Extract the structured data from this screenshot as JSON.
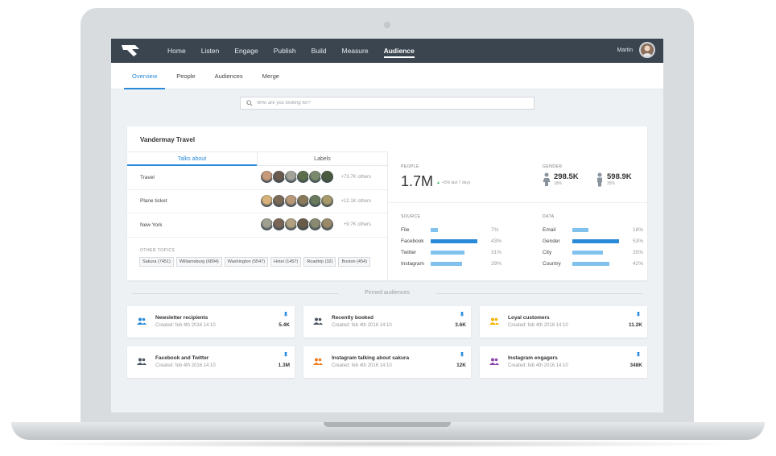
{
  "colors": {
    "accent": "#2a8ad8",
    "nav_bg": "#3a4550",
    "bar_light": "#80c1ee",
    "growth_green": "#3ab56c",
    "group_blue": "#2a8ad8",
    "group_dark": "#4a5560",
    "group_yellow": "#f5b400",
    "group_orange": "#f07d1e",
    "group_purple": "#8e44ad"
  },
  "topnav": {
    "logo": "brand-logo",
    "items": [
      "Home",
      "Listen",
      "Engage",
      "Publish",
      "Build",
      "Measure",
      "Audience"
    ],
    "active": "Audience",
    "user_name": "Martin"
  },
  "subnav": {
    "items": [
      "Overview",
      "People",
      "Audiences",
      "Merge"
    ],
    "active": "Overview"
  },
  "search": {
    "placeholder": "Who are you looking for?"
  },
  "card": {
    "title": "Vandermay Travel",
    "tabs": [
      "Talks about",
      "Labels"
    ],
    "topics": [
      {
        "name": "Travel",
        "others": "+73.7K others"
      },
      {
        "name": "Plane ticket",
        "others": "+12.1K others"
      },
      {
        "name": "New York",
        "others": "+9.7K others"
      }
    ],
    "other_topics_label": "OTHER TOPICS",
    "other_topics": [
      "Sakura (7451)",
      "Williamsburg (6894)",
      "Washington (5547)",
      "Hotel (1457)",
      "Roadtrip (32)",
      "Boston (454)"
    ]
  },
  "stats": {
    "people_label": "PEOPLE",
    "people_value": "1.7M",
    "people_growth": "+5% last 7 days",
    "gender_label": "GENDER",
    "female": {
      "value": "298.5K",
      "pct": "18%"
    },
    "male": {
      "value": "598.9K",
      "pct": "35%"
    },
    "source_label": "SOURCE",
    "source": [
      {
        "name": "File",
        "pct": "7%",
        "value": 7
      },
      {
        "name": "Facebook",
        "pct": "43%",
        "value": 43
      },
      {
        "name": "Twitter",
        "pct": "31%",
        "value": 31
      },
      {
        "name": "Instagram",
        "pct": "29%",
        "value": 29
      }
    ],
    "data_label": "DATA",
    "data": [
      {
        "name": "Email",
        "pct": "18%",
        "value": 18
      },
      {
        "name": "Gender",
        "pct": "53%",
        "value": 53
      },
      {
        "name": "City",
        "pct": "35%",
        "value": 35
      },
      {
        "name": "Country",
        "pct": "42%",
        "value": 42
      }
    ]
  },
  "pinned": {
    "title": "Pinned audiences",
    "items": [
      {
        "name": "Newsletter recipients",
        "created": "Created: feb 4th 2016 14:10",
        "count": "5.4K",
        "icon_color": "#2a8ad8"
      },
      {
        "name": "Recently booked",
        "created": "Created: feb 4th 2016 14:10",
        "count": "3.6K",
        "icon_color": "#4a5560"
      },
      {
        "name": "Loyal customers",
        "created": "Created: feb 4th 2016 14:10",
        "count": "11.2K",
        "icon_color": "#f5b400"
      },
      {
        "name": "Facebook and Twitter",
        "created": "Created: feb 4th 2016 14:10",
        "count": "1.3M",
        "icon_color": "#4a5560"
      },
      {
        "name": "Instagram talking about sakura",
        "created": "Created: feb 4th 2016 14:10",
        "count": "12K",
        "icon_color": "#f07d1e"
      },
      {
        "name": "Instagram engagers",
        "created": "Created: feb 4th 2016 14:10",
        "count": "348K",
        "icon_color": "#8e44ad"
      }
    ]
  }
}
